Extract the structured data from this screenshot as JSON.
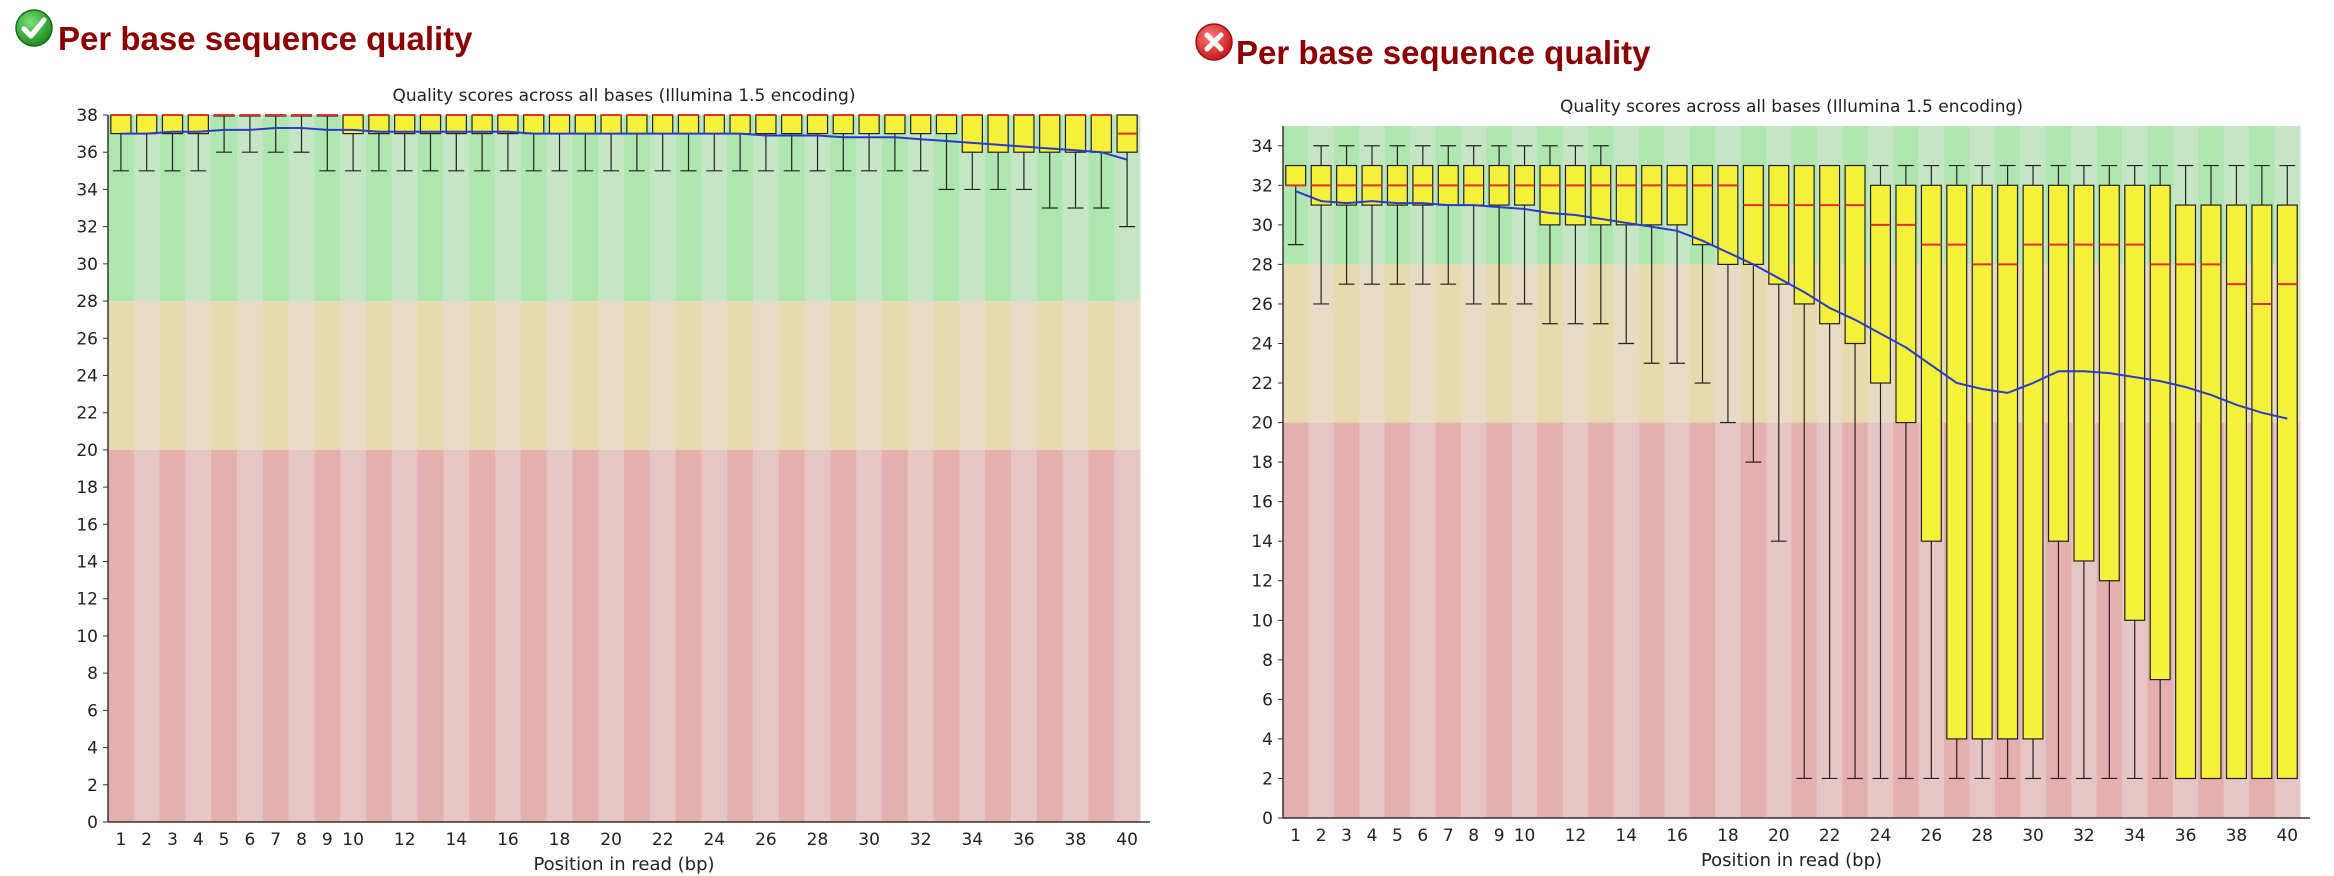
{
  "panels": [
    {
      "heading": "Per base sequence quality",
      "status": "pass",
      "status_icon": "check-circle-icon",
      "status_color": "#2e9e2e"
    },
    {
      "heading": "Per base sequence quality",
      "status": "fail",
      "status_icon": "x-circle-icon",
      "status_color": "#d9202a"
    }
  ],
  "chart_data": [
    {
      "type": "box",
      "title": "Quality scores across all bases (Illumina 1.5 encoding)",
      "xlabel": "Position in read (bp)",
      "ylabel": "",
      "ylim": [
        0,
        38
      ],
      "yticks": [
        0,
        2,
        4,
        6,
        8,
        10,
        12,
        14,
        16,
        18,
        20,
        22,
        24,
        26,
        28,
        30,
        32,
        34,
        36,
        38
      ],
      "x": [
        1,
        2,
        3,
        4,
        5,
        6,
        7,
        8,
        9,
        10,
        11,
        12,
        13,
        14,
        15,
        16,
        17,
        18,
        19,
        20,
        21,
        22,
        23,
        24,
        25,
        26,
        27,
        28,
        29,
        30,
        31,
        32,
        33,
        34,
        35,
        36,
        37,
        38,
        39,
        40
      ],
      "xticklabels": [
        "1",
        "2",
        "3",
        "4",
        "5",
        "6",
        "7",
        "8",
        "9",
        "10",
        "12",
        "14",
        "16",
        "18",
        "20",
        "22",
        "24",
        "26",
        "28",
        "30",
        "32",
        "34",
        "36",
        "38",
        "40"
      ],
      "bands": [
        {
          "from": 28,
          "to": 38,
          "light": "#c5e6c5",
          "dark": "#afe6af"
        },
        {
          "from": 20,
          "to": 28,
          "light": "#e6dcc5",
          "dark": "#e6dbaf"
        },
        {
          "from": 0,
          "to": 20,
          "light": "#e6c5c5",
          "dark": "#e6afaf"
        }
      ],
      "box_color": "#f5f03c",
      "median_color": "#e03030",
      "mean_color": "#2a3bc8",
      "lower_whisker": [
        35,
        35,
        35,
        35,
        36,
        36,
        36,
        36,
        35,
        35,
        35,
        35,
        35,
        35,
        35,
        35,
        35,
        35,
        35,
        35,
        35,
        35,
        35,
        35,
        35,
        35,
        35,
        35,
        35,
        35,
        35,
        35,
        34,
        34,
        34,
        34,
        33,
        33,
        33,
        32
      ],
      "q1": [
        37,
        37,
        37,
        37,
        38,
        38,
        38,
        38,
        38,
        37,
        37,
        37,
        37,
        37,
        37,
        37,
        37,
        37,
        37,
        37,
        37,
        37,
        37,
        37,
        37,
        37,
        37,
        37,
        37,
        37,
        37,
        37,
        37,
        36,
        36,
        36,
        36,
        36,
        36,
        36
      ],
      "median": [
        38,
        38,
        38,
        38,
        38,
        38,
        38,
        38,
        38,
        38,
        38,
        38,
        38,
        38,
        38,
        38,
        38,
        38,
        38,
        38,
        38,
        38,
        38,
        38,
        38,
        38,
        38,
        38,
        38,
        38,
        38,
        38,
        38,
        38,
        38,
        38,
        38,
        38,
        38,
        37
      ],
      "q3": [
        38,
        38,
        38,
        38,
        38,
        38,
        38,
        38,
        38,
        38,
        38,
        38,
        38,
        38,
        38,
        38,
        38,
        38,
        38,
        38,
        38,
        38,
        38,
        38,
        38,
        38,
        38,
        38,
        38,
        38,
        38,
        38,
        38,
        38,
        38,
        38,
        38,
        38,
        38,
        38
      ],
      "upper_whisker": [
        38,
        38,
        38,
        38,
        38,
        38,
        38,
        38,
        38,
        38,
        38,
        38,
        38,
        38,
        38,
        38,
        38,
        38,
        38,
        38,
        38,
        38,
        38,
        38,
        38,
        38,
        38,
        38,
        38,
        38,
        38,
        38,
        38,
        38,
        38,
        38,
        38,
        38,
        38,
        38
      ],
      "mean": [
        37.0,
        37.0,
        37.1,
        37.1,
        37.2,
        37.2,
        37.3,
        37.3,
        37.2,
        37.2,
        37.1,
        37.1,
        37.1,
        37.1,
        37.1,
        37.1,
        37.0,
        37.0,
        37.0,
        37.0,
        37.0,
        37.0,
        37.0,
        37.0,
        37.0,
        36.9,
        36.9,
        36.9,
        36.8,
        36.8,
        36.8,
        36.7,
        36.6,
        36.5,
        36.4,
        36.3,
        36.2,
        36.1,
        36.0,
        35.6
      ]
    },
    {
      "type": "box",
      "title": "Quality scores across all bases (Illumina 1.5 encoding)",
      "xlabel": "Position in read (bp)",
      "ylabel": "",
      "ylim": [
        0,
        35
      ],
      "yticks": [
        0,
        2,
        4,
        6,
        8,
        10,
        12,
        14,
        16,
        18,
        20,
        22,
        24,
        26,
        28,
        30,
        32,
        34
      ],
      "x": [
        1,
        2,
        3,
        4,
        5,
        6,
        7,
        8,
        9,
        10,
        11,
        12,
        13,
        14,
        15,
        16,
        17,
        18,
        19,
        20,
        21,
        22,
        23,
        24,
        25,
        26,
        27,
        28,
        29,
        30,
        31,
        32,
        33,
        34,
        35,
        36,
        37,
        38,
        39,
        40
      ],
      "xticklabels": [
        "1",
        "2",
        "3",
        "4",
        "5",
        "6",
        "7",
        "8",
        "9",
        "10",
        "12",
        "14",
        "16",
        "18",
        "20",
        "22",
        "24",
        "26",
        "28",
        "30",
        "32",
        "34",
        "36",
        "38",
        "40"
      ],
      "bands": [
        {
          "from": 28,
          "to": 35,
          "light": "#c5e6c5",
          "dark": "#afe6af"
        },
        {
          "from": 20,
          "to": 28,
          "light": "#e6dcc5",
          "dark": "#e6dbaf"
        },
        {
          "from": 0,
          "to": 20,
          "light": "#e6c5c5",
          "dark": "#e6afaf"
        }
      ],
      "box_color": "#f5f03c",
      "median_color": "#e03030",
      "mean_color": "#2a3bc8",
      "lower_whisker": [
        29,
        26,
        27,
        27,
        27,
        27,
        27,
        26,
        26,
        26,
        25,
        25,
        25,
        24,
        23,
        23,
        22,
        20,
        18,
        14,
        2,
        2,
        2,
        2,
        2,
        2,
        2,
        2,
        2,
        2,
        2,
        2,
        2,
        2,
        2,
        2,
        2,
        2,
        2,
        2
      ],
      "q1": [
        32,
        31,
        31,
        31,
        31,
        31,
        31,
        31,
        31,
        31,
        30,
        30,
        30,
        30,
        30,
        30,
        29,
        28,
        28,
        27,
        26,
        25,
        24,
        22,
        20,
        14,
        4,
        4,
        4,
        4,
        14,
        13,
        12,
        10,
        7,
        2,
        2,
        2,
        2,
        2
      ],
      "median": [
        32,
        32,
        32,
        32,
        32,
        32,
        32,
        32,
        32,
        32,
        32,
        32,
        32,
        32,
        32,
        32,
        32,
        32,
        31,
        31,
        31,
        31,
        31,
        30,
        30,
        29,
        29,
        28,
        28,
        29,
        29,
        29,
        29,
        29,
        28,
        28,
        28,
        27,
        26,
        27
      ],
      "q3": [
        33,
        33,
        33,
        33,
        33,
        33,
        33,
        33,
        33,
        33,
        33,
        33,
        33,
        33,
        33,
        33,
        33,
        33,
        33,
        33,
        33,
        33,
        33,
        32,
        32,
        32,
        32,
        32,
        32,
        32,
        32,
        32,
        32,
        32,
        32,
        31,
        31,
        31,
        31,
        31
      ],
      "upper_whisker": [
        33,
        34,
        34,
        34,
        34,
        34,
        34,
        34,
        34,
        34,
        34,
        34,
        34,
        33,
        33,
        33,
        33,
        33,
        33,
        33,
        33,
        33,
        33,
        33,
        33,
        33,
        33,
        33,
        33,
        33,
        33,
        33,
        33,
        33,
        33,
        33,
        33,
        33,
        33,
        33
      ],
      "mean": [
        31.7,
        31.2,
        31.1,
        31.2,
        31.1,
        31.1,
        31.0,
        31.0,
        30.9,
        30.8,
        30.6,
        30.5,
        30.3,
        30.1,
        29.9,
        29.7,
        29.2,
        28.6,
        28.0,
        27.3,
        26.6,
        25.8,
        25.2,
        24.5,
        23.8,
        22.9,
        22.0,
        21.7,
        21.5,
        22.0,
        22.6,
        22.6,
        22.5,
        22.3,
        22.1,
        21.8,
        21.4,
        20.9,
        20.5,
        20.2
      ]
    }
  ]
}
